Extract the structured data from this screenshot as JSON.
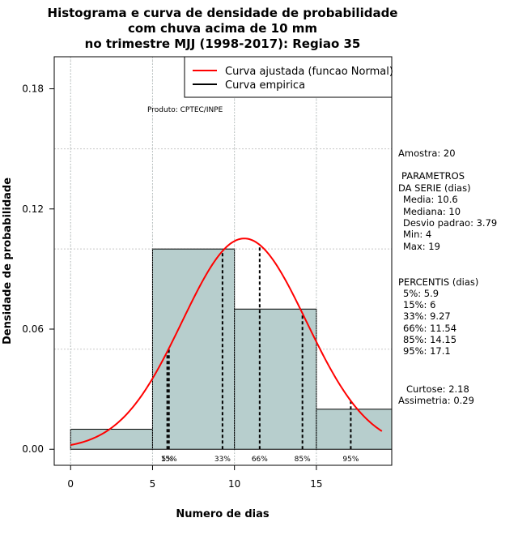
{
  "chart_data": {
    "type": "histogram",
    "title": [
      "Histograma e curva de densidade de probabilidade",
      "com chuva acima de 10 mm",
      "no trimestre MJJ (1998-2017): Regiao 35"
    ],
    "xlabel": "Numero de dias",
    "ylabel": "Densidade de probabilidade",
    "xlim": [
      -1,
      19.6
    ],
    "ylim": [
      -0.008,
      0.196
    ],
    "x_ticks": [
      {
        "value": 0,
        "label": "0"
      },
      {
        "value": 5,
        "label": "5"
      },
      {
        "value": 10,
        "label": "10"
      },
      {
        "value": 15,
        "label": "15"
      }
    ],
    "y_ticks": [
      {
        "value": 0.0,
        "label": "0.00"
      },
      {
        "value": 0.06,
        "label": "0.06"
      },
      {
        "value": 0.12,
        "label": "0.12"
      },
      {
        "value": 0.18,
        "label": "0.18"
      }
    ],
    "grid_y": [
      0.05,
      0.1,
      0.15
    ],
    "bars": [
      {
        "from": 0,
        "to": 5,
        "density": 0.01
      },
      {
        "from": 5,
        "to": 10,
        "density": 0.1
      },
      {
        "from": 10,
        "to": 15,
        "density": 0.07
      },
      {
        "from": 15,
        "to": 20,
        "density": 0.02
      }
    ],
    "normal_fit": {
      "mean": 10.6,
      "sd": 3.79,
      "x_from": 0,
      "x_to": 19,
      "color": "#ff0000"
    },
    "percentile_lines": [
      {
        "x": 5.9,
        "label": "5%"
      },
      {
        "x": 6,
        "label": "15%"
      },
      {
        "x": 9.27,
        "label": "33%"
      },
      {
        "x": 11.54,
        "label": "66%"
      },
      {
        "x": 14.15,
        "label": "85%"
      },
      {
        "x": 17.1,
        "label": "95%"
      }
    ],
    "legend": {
      "position": "top-right",
      "entries": [
        {
          "label": "Curva ajustada (funcao Normal)",
          "color": "#ff0000"
        },
        {
          "label": "Curva empirica",
          "color": "#000000"
        }
      ]
    },
    "annotation": "Produto: CPTEC/INPE",
    "colors": {
      "bar_fill": "#b7cecd",
      "curve": "#ff0000",
      "grid": "#c8c8c8"
    }
  },
  "side_panel": {
    "amostra": "Amostra: 20",
    "parametros_title_1": "PARAMETROS",
    "parametros_title_2": "DA SERIE (dias)",
    "media": "Media: 10.6",
    "mediana": "Mediana: 10",
    "desvio": "Desvio padrao: 3.79",
    "min": "Min: 4",
    "max": "Max: 19",
    "percentis_title": "PERCENTIS (dias)",
    "percentis": [
      "5%: 5.9",
      "15%: 6",
      "33%: 9.27",
      "66%: 11.54",
      "85%: 14.15",
      "95%: 17.1"
    ],
    "curtose": "Curtose: 2.18",
    "assimetria": "Assimetria: 0.29"
  }
}
